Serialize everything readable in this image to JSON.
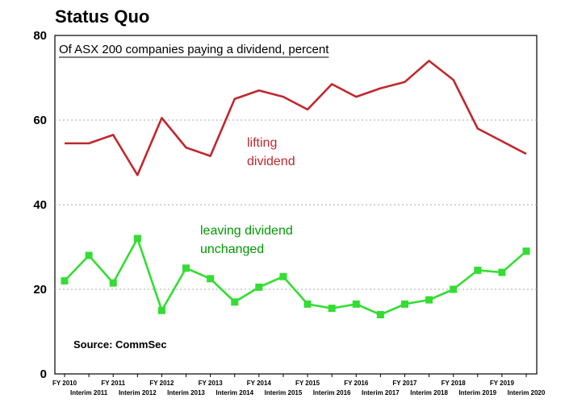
{
  "chart_data": {
    "type": "line",
    "title": "Status Quo",
    "subtitle": "Of ASX 200 companies paying a dividend, percent",
    "source": "Source: CommSec",
    "ylim": [
      0,
      80
    ],
    "yticks": [
      "0",
      "20",
      "40",
      "60",
      "80"
    ],
    "grid": true,
    "xtick_labels": [
      "FY 2010",
      "Interim 2011",
      "FY 2011",
      "Interim 2012",
      "FY 2012",
      "Interim 2013",
      "FY 2013",
      "Interim 2014",
      "FY 2014",
      "Interim 2015",
      "FY 2015",
      "Interim 2016",
      "FY 2016",
      "Interim 2017",
      "FY 2017",
      "Interim 2018",
      "FY 2018",
      "Interim 2019",
      "FY 2019",
      "Interim 2020"
    ],
    "series": [
      {
        "label": "lifting dividend",
        "label_line1": "lifting",
        "label_line2": "dividend",
        "color": "#c0282d",
        "marker": "none",
        "values": [
          54.5,
          54.5,
          56.5,
          47,
          60.5,
          53.5,
          51.5,
          65,
          67,
          65.5,
          62.5,
          68.5,
          65.5,
          67.5,
          69,
          74,
          69.5,
          58,
          55,
          52
        ]
      },
      {
        "label": "leaving dividend unchanged",
        "label_line1": "leaving dividend",
        "label_line2": "unchanged",
        "color": "#33dd33",
        "marker": "square",
        "values": [
          22,
          28,
          21.5,
          32,
          15,
          25,
          22.5,
          17,
          20.5,
          23,
          16.5,
          15.5,
          16.5,
          14,
          16.5,
          17.5,
          20,
          24.5,
          24,
          29
        ]
      }
    ]
  }
}
